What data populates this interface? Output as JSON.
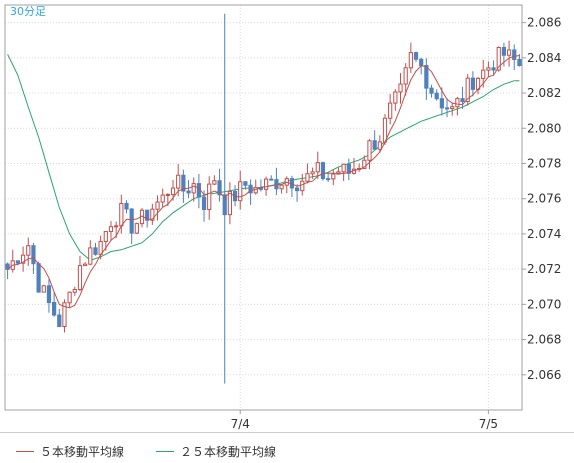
{
  "timeframe_label": "30分足",
  "legend": {
    "ma5_label": "５本移動平均線",
    "ma25_label": "２５本移動平均線"
  },
  "colors": {
    "up": "#c0504d",
    "down": "#4f81bd",
    "ma5": "#c0504d",
    "ma25": "#2aa66f",
    "grid": "#d9d9d9",
    "frame": "#a0a0a0"
  },
  "chart_data": {
    "type": "candlestick",
    "ylim": [
      2.064,
      2.087
    ],
    "yticks": [
      2.066,
      2.068,
      2.07,
      2.072,
      2.074,
      2.076,
      2.078,
      2.08,
      2.082,
      2.084,
      2.086
    ],
    "x_count": 100,
    "xticks": [
      {
        "index": 45,
        "label": "7/4"
      },
      {
        "index": 93,
        "label": "7/5"
      }
    ],
    "anchors": {
      "index": [
        0,
        2,
        4,
        6,
        8,
        10,
        12,
        14,
        16,
        18,
        20,
        22,
        24,
        26,
        28,
        30,
        32,
        34,
        36,
        38,
        40,
        42,
        44,
        46,
        48,
        50,
        52,
        54,
        56,
        58,
        60,
        62,
        64,
        66,
        68,
        70,
        72,
        74,
        76,
        78,
        80,
        82,
        84,
        86,
        88,
        90,
        92,
        94,
        96,
        98,
        99
      ],
      "close": [
        2.072,
        2.0728,
        2.0734,
        2.0712,
        2.07,
        2.069,
        2.0705,
        2.0722,
        2.073,
        2.0735,
        2.0748,
        2.0752,
        2.0745,
        2.0748,
        2.0755,
        2.076,
        2.077,
        2.0765,
        2.0768,
        2.0758,
        2.0772,
        2.0756,
        2.0762,
        2.0768,
        2.0765,
        2.0768,
        2.077,
        2.0772,
        2.077,
        2.0772,
        2.0775,
        2.0772,
        2.0776,
        2.0775,
        2.078,
        2.079,
        2.0795,
        2.081,
        2.082,
        2.084,
        2.0835,
        2.0822,
        2.0815,
        2.081,
        2.0818,
        2.0828,
        2.0832,
        2.0838,
        2.0842,
        2.0838,
        2.0836
      ]
    },
    "special": [
      {
        "index": 42,
        "high": 2.0865,
        "low": 2.0655
      }
    ],
    "ma25_anchors": {
      "index": [
        0,
        2,
        4,
        6,
        8,
        10,
        12,
        14,
        16,
        18,
        20,
        22,
        24,
        26,
        28,
        30,
        32,
        34,
        36,
        38,
        40,
        42,
        44,
        46,
        48,
        50,
        52,
        54,
        56,
        58,
        60,
        62,
        64,
        66,
        68,
        70,
        72,
        74,
        76,
        78,
        80,
        82,
        84,
        86,
        88,
        90,
        92,
        94,
        96,
        98,
        99
      ],
      "value": [
        2.0842,
        2.083,
        2.0812,
        2.0795,
        2.0775,
        2.0755,
        2.074,
        2.073,
        2.0725,
        2.0727,
        2.073,
        2.0731,
        2.0733,
        2.0735,
        2.074,
        2.0747,
        2.0752,
        2.0756,
        2.076,
        2.0762,
        2.0763,
        2.0764,
        2.0765,
        2.0766,
        2.0766,
        2.0767,
        2.0768,
        2.077,
        2.0771,
        2.0772,
        2.0773,
        2.0775,
        2.0778,
        2.078,
        2.0782,
        2.0785,
        2.079,
        2.0795,
        2.0798,
        2.0801,
        2.0804,
        2.0806,
        2.0808,
        2.081,
        2.0812,
        2.0815,
        2.0818,
        2.0822,
        2.0825,
        2.0827,
        2.0827
      ]
    }
  }
}
